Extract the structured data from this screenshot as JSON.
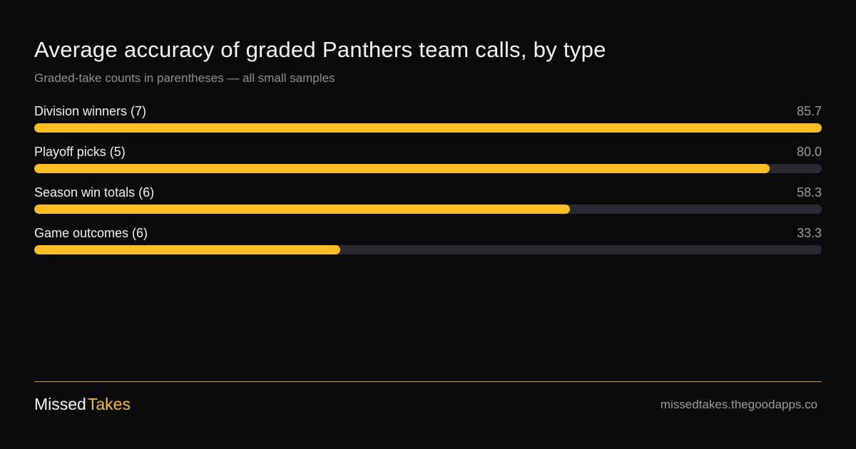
{
  "chart_data": {
    "type": "bar",
    "orientation": "horizontal",
    "title": "Average accuracy of graded Panthers team calls, by type",
    "subtitle": "Graded-take counts in parentheses — all small samples",
    "categories": [
      "Division winners (7)",
      "Playoff picks (5)",
      "Season win totals (6)",
      "Game outcomes (6)"
    ],
    "values": [
      85.7,
      80.0,
      58.3,
      33.3
    ],
    "value_labels": [
      "85.7",
      "80.0",
      "58.3",
      "33.3"
    ],
    "xlim": [
      0,
      85.7
    ],
    "grid": false,
    "colors": {
      "bar": "#fbbc23",
      "track": "#2a2830",
      "background": "#0b0a0a"
    }
  },
  "footer": {
    "brand_part1": "Missed",
    "brand_part2": "Takes",
    "site": "missedtakes.thegoodapps.co"
  }
}
